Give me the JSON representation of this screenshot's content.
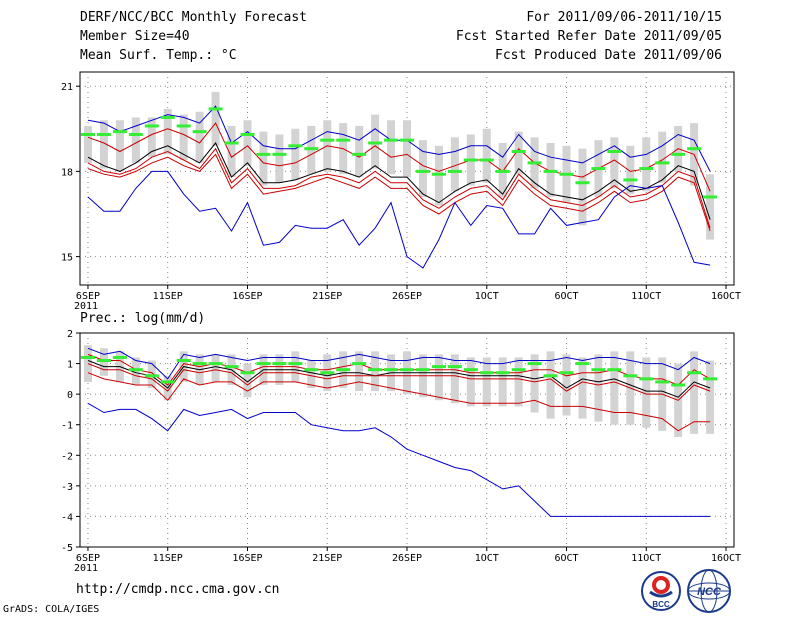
{
  "header": {
    "title": "DERF/NCC/BCC Monthly Forecast",
    "member_size": "Member Size=40",
    "variable": "Mean Surf. Temp.: °C",
    "period": "For 2011/09/06-2011/10/15",
    "started": "Fcst Started Refer Date 2011/09/05",
    "produced": "Fcst Produced Date 2011/09/06"
  },
  "footer": {
    "url": "http://cmdp.ncc.cma.gov.cn",
    "credit": "GrADS: COLA/IGES",
    "logo_bcc_text": "BCC",
    "logo_ncc_text": "NCC"
  },
  "colors": {
    "envelope": "#0000cc",
    "inner_band": "#cc0000",
    "mean": "#000000",
    "box": "#d3d3d3",
    "median": "#33ee33",
    "grid": "#888888"
  },
  "chart_data": [
    {
      "type": "line",
      "title": "Mean Surf. Temp.: °C",
      "ylim": [
        14,
        21.5
      ],
      "yticks": [
        15,
        18,
        21
      ],
      "x": [
        6,
        7,
        8,
        9,
        10,
        11,
        12,
        13,
        14,
        15,
        16,
        17,
        18,
        19,
        20,
        21,
        22,
        23,
        24,
        25,
        26,
        27,
        28,
        29,
        30,
        31,
        32,
        33,
        34,
        35,
        36,
        37,
        38,
        39,
        40,
        41,
        42,
        43,
        44,
        45
      ],
      "xticks": [
        {
          "day": 6,
          "label": "6SEP",
          "sub": "2011"
        },
        {
          "day": 11,
          "label": "11SEP"
        },
        {
          "day": 16,
          "label": "16SEP"
        },
        {
          "day": 21,
          "label": "21SEP"
        },
        {
          "day": 26,
          "label": "26SEP"
        },
        {
          "day": 31,
          "label": "1OCT"
        },
        {
          "day": 36,
          "label": "6OCT"
        },
        {
          "day": 41,
          "label": "11OCT"
        },
        {
          "day": 46,
          "label": "16OCT"
        }
      ],
      "series": [
        {
          "name": "max",
          "values": [
            19.8,
            19.7,
            19.4,
            19.6,
            19.8,
            20.0,
            19.9,
            19.7,
            20.3,
            19.0,
            19.4,
            18.9,
            18.8,
            18.8,
            19.1,
            19.4,
            19.3,
            19.1,
            19.5,
            19.1,
            19.1,
            18.7,
            18.6,
            18.7,
            18.9,
            18.9,
            18.5,
            19.3,
            18.7,
            18.5,
            18.4,
            18.3,
            18.6,
            18.9,
            18.5,
            18.6,
            18.9,
            19.3,
            19.1,
            18.0
          ]
        },
        {
          "name": "p90",
          "values": [
            19.2,
            19.0,
            18.7,
            19.0,
            19.3,
            19.5,
            19.3,
            19.0,
            19.7,
            18.5,
            18.9,
            18.3,
            18.2,
            18.3,
            18.6,
            18.9,
            18.8,
            18.5,
            18.9,
            18.5,
            18.6,
            18.2,
            18.0,
            18.2,
            18.4,
            18.4,
            18.0,
            18.8,
            18.3,
            18.0,
            17.9,
            17.8,
            18.1,
            18.4,
            18.0,
            18.1,
            18.4,
            18.8,
            18.6,
            17.3
          ]
        },
        {
          "name": "mean",
          "values": [
            18.5,
            18.2,
            18.0,
            18.3,
            18.7,
            18.9,
            18.6,
            18.3,
            19.0,
            17.8,
            18.3,
            17.6,
            17.6,
            17.7,
            17.9,
            18.1,
            18.0,
            17.8,
            18.2,
            17.8,
            17.8,
            17.2,
            16.9,
            17.3,
            17.6,
            17.7,
            17.2,
            18.1,
            17.6,
            17.2,
            17.1,
            17.0,
            17.3,
            17.7,
            17.3,
            17.4,
            17.7,
            18.2,
            18.0,
            16.3
          ]
        },
        {
          "name": "p10",
          "values": [
            18.3,
            18.0,
            17.9,
            18.1,
            18.5,
            18.7,
            18.4,
            18.1,
            18.8,
            17.6,
            18.1,
            17.4,
            17.4,
            17.5,
            17.8,
            17.9,
            17.8,
            17.6,
            18.0,
            17.6,
            17.6,
            17.0,
            16.7,
            17.1,
            17.4,
            17.5,
            17.0,
            17.9,
            17.4,
            17.0,
            16.9,
            16.8,
            17.1,
            17.5,
            17.1,
            17.2,
            17.5,
            18.0,
            17.8,
            16.0
          ]
        },
        {
          "name": "p10_lower",
          "values": [
            18.1,
            17.9,
            17.8,
            18.0,
            18.3,
            18.5,
            18.2,
            18.0,
            18.6,
            17.4,
            17.9,
            17.2,
            17.3,
            17.4,
            17.6,
            17.8,
            17.6,
            17.4,
            17.8,
            17.4,
            17.4,
            16.8,
            16.5,
            16.9,
            17.2,
            17.3,
            16.8,
            17.7,
            17.2,
            16.8,
            16.7,
            16.6,
            16.9,
            17.3,
            16.9,
            17.0,
            17.3,
            17.8,
            17.6,
            15.9
          ]
        },
        {
          "name": "min",
          "values": [
            17.1,
            16.6,
            16.6,
            17.4,
            18.0,
            18.0,
            17.2,
            16.6,
            16.7,
            15.9,
            16.9,
            15.4,
            15.5,
            16.1,
            16.0,
            16.0,
            16.3,
            15.4,
            16.0,
            16.9,
            15.0,
            14.6,
            15.6,
            16.9,
            16.1,
            16.8,
            16.7,
            15.8,
            15.8,
            16.7,
            16.1,
            16.2,
            16.3,
            17.1,
            17.5,
            17.4,
            17.5,
            16.2,
            14.8,
            14.7
          ]
        }
      ],
      "boxes": {
        "top": [
          19.6,
          19.8,
          19.8,
          19.9,
          19.9,
          20.2,
          20.0,
          20.1,
          20.8,
          19.6,
          19.8,
          19.4,
          19.3,
          19.5,
          19.6,
          19.8,
          19.7,
          19.6,
          20.0,
          19.8,
          19.8,
          19.1,
          18.9,
          19.2,
          19.3,
          19.5,
          19.0,
          19.4,
          19.2,
          19.0,
          18.9,
          18.8,
          19.1,
          19.2,
          18.9,
          19.2,
          19.4,
          19.6,
          19.7,
          17.9
        ],
        "bottom": [
          18.3,
          18.1,
          18.0,
          18.3,
          18.5,
          18.6,
          18.4,
          18.3,
          18.9,
          17.8,
          18.2,
          17.5,
          17.6,
          17.7,
          17.9,
          18.0,
          17.9,
          17.8,
          18.1,
          17.9,
          17.8,
          17.1,
          16.8,
          17.3,
          17.5,
          17.6,
          17.1,
          17.9,
          17.4,
          17.1,
          16.9,
          16.1,
          17.1,
          17.4,
          17.2,
          17.3,
          17.6,
          18.0,
          17.5,
          15.6
        ]
      },
      "medians": [
        19.3,
        19.3,
        19.4,
        19.3,
        19.6,
        19.9,
        19.6,
        19.4,
        20.2,
        19.0,
        19.3,
        18.6,
        18.6,
        18.9,
        18.8,
        19.1,
        19.1,
        18.6,
        19.0,
        19.1,
        19.1,
        18.0,
        17.9,
        18.0,
        18.4,
        18.4,
        18.0,
        18.7,
        18.3,
        18.0,
        17.9,
        17.6,
        18.1,
        18.7,
        17.7,
        18.1,
        18.3,
        18.6,
        18.8,
        17.1
      ]
    },
    {
      "type": "line",
      "title": "Prec.: log(mm/d)",
      "ylim": [
        -5,
        2
      ],
      "yticks": [
        -5,
        -4,
        -3,
        -2,
        -1,
        0,
        1,
        2
      ],
      "x": [
        6,
        7,
        8,
        9,
        10,
        11,
        12,
        13,
        14,
        15,
        16,
        17,
        18,
        19,
        20,
        21,
        22,
        23,
        24,
        25,
        26,
        27,
        28,
        29,
        30,
        31,
        32,
        33,
        34,
        35,
        36,
        37,
        38,
        39,
        40,
        41,
        42,
        43,
        44,
        45
      ],
      "xticks": [
        {
          "day": 6,
          "label": "6SEP",
          "sub": "2011"
        },
        {
          "day": 11,
          "label": "11SEP"
        },
        {
          "day": 16,
          "label": "16SEP"
        },
        {
          "day": 21,
          "label": "21SEP"
        },
        {
          "day": 26,
          "label": "26SEP"
        },
        {
          "day": 31,
          "label": "1OCT"
        },
        {
          "day": 36,
          "label": "6OCT"
        },
        {
          "day": 41,
          "label": "11OCT"
        },
        {
          "day": 46,
          "label": "16OCT"
        }
      ],
      "series": [
        {
          "name": "max",
          "values": [
            1.5,
            1.3,
            1.4,
            1.1,
            1.0,
            0.5,
            1.3,
            1.2,
            1.3,
            1.2,
            1.1,
            1.2,
            1.2,
            1.2,
            1.1,
            1.1,
            1.2,
            1.3,
            1.2,
            1.1,
            1.1,
            1.2,
            1.2,
            1.1,
            1.1,
            1.0,
            1.0,
            1.1,
            1.1,
            1.1,
            1.2,
            1.1,
            1.2,
            1.2,
            1.1,
            1.0,
            1.0,
            0.8,
            1.2,
            1.0
          ]
        },
        {
          "name": "p90",
          "values": [
            1.3,
            1.1,
            1.1,
            0.8,
            0.7,
            0.3,
            1.0,
            0.9,
            1.0,
            0.9,
            0.7,
            0.9,
            0.9,
            0.9,
            0.8,
            0.8,
            0.9,
            1.0,
            0.8,
            0.8,
            0.8,
            0.8,
            0.8,
            0.8,
            0.7,
            0.7,
            0.7,
            0.7,
            0.8,
            0.8,
            0.6,
            0.7,
            0.7,
            0.8,
            0.6,
            0.5,
            0.5,
            0.3,
            0.8,
            0.5
          ]
        },
        {
          "name": "mean",
          "values": [
            1.1,
            0.9,
            0.9,
            0.7,
            0.6,
            0.2,
            0.9,
            0.8,
            0.9,
            0.8,
            0.4,
            0.8,
            0.8,
            0.8,
            0.7,
            0.6,
            0.7,
            0.7,
            0.6,
            0.7,
            0.7,
            0.7,
            0.7,
            0.7,
            0.6,
            0.6,
            0.6,
            0.6,
            0.5,
            0.6,
            0.2,
            0.5,
            0.4,
            0.5,
            0.3,
            0.1,
            0.1,
            -0.1,
            0.4,
            0.2
          ]
        },
        {
          "name": "p10",
          "values": [
            1.0,
            0.8,
            0.8,
            0.6,
            0.5,
            0.1,
            0.8,
            0.7,
            0.8,
            0.7,
            0.3,
            0.7,
            0.7,
            0.7,
            0.6,
            0.5,
            0.6,
            0.6,
            0.6,
            0.6,
            0.6,
            0.6,
            0.6,
            0.6,
            0.5,
            0.5,
            0.5,
            0.5,
            0.4,
            0.5,
            0.1,
            0.4,
            0.3,
            0.4,
            0.2,
            0.0,
            0.0,
            -0.2,
            0.3,
            0.1
          ]
        },
        {
          "name": "p10_lower",
          "values": [
            0.7,
            0.5,
            0.4,
            0.3,
            0.3,
            -0.2,
            0.5,
            0.3,
            0.4,
            0.4,
            0.1,
            0.4,
            0.4,
            0.4,
            0.3,
            0.2,
            0.3,
            0.4,
            0.3,
            0.2,
            0.1,
            0.0,
            -0.1,
            -0.2,
            -0.3,
            -0.3,
            -0.3,
            -0.3,
            -0.2,
            -0.4,
            -0.4,
            -0.4,
            -0.5,
            -0.6,
            -0.6,
            -0.7,
            -0.8,
            -1.2,
            -0.9,
            -0.9
          ]
        },
        {
          "name": "min",
          "values": [
            -0.3,
            -0.6,
            -0.5,
            -0.5,
            -0.8,
            -1.2,
            -0.5,
            -0.7,
            -0.6,
            -0.5,
            -0.8,
            -0.6,
            -0.6,
            -0.6,
            -1.0,
            -1.1,
            -1.2,
            -1.2,
            -1.1,
            -1.4,
            -1.8,
            -2.0,
            -2.2,
            -2.4,
            -2.5,
            -2.8,
            -3.1,
            -3.0,
            -3.5,
            -4.0,
            -4.0,
            -4.0,
            -4.0,
            -4.0,
            -4.0,
            -4.0,
            -4.0,
            -4.0,
            -4.0,
            -4.0
          ]
        }
      ],
      "boxes": {
        "top": [
          1.6,
          1.5,
          1.4,
          1.2,
          1.1,
          0.6,
          1.4,
          1.3,
          1.3,
          1.3,
          1.0,
          1.3,
          1.3,
          1.4,
          1.1,
          1.3,
          1.4,
          1.4,
          1.4,
          1.3,
          1.4,
          1.3,
          1.3,
          1.3,
          1.2,
          1.2,
          1.2,
          1.2,
          1.3,
          1.4,
          1.3,
          1.2,
          1.3,
          1.4,
          1.4,
          1.2,
          1.2,
          1.0,
          1.4,
          1.1
        ],
        "bottom": [
          0.4,
          0.6,
          0.4,
          0.3,
          0.2,
          -0.2,
          0.4,
          0.3,
          0.4,
          0.3,
          -0.1,
          0.3,
          0.3,
          0.4,
          0.2,
          0.1,
          0.2,
          0.1,
          0.1,
          0.1,
          0.0,
          -0.1,
          -0.2,
          -0.3,
          -0.4,
          -0.4,
          -0.4,
          -0.4,
          -0.6,
          -0.8,
          -0.7,
          -0.8,
          -0.9,
          -1.0,
          -1.0,
          -1.1,
          -1.2,
          -1.4,
          -1.3,
          -1.3
        ]
      },
      "medians": [
        1.2,
        1.1,
        1.2,
        0.8,
        0.6,
        0.4,
        1.1,
        1.0,
        1.0,
        0.9,
        0.7,
        1.0,
        1.0,
        1.0,
        0.8,
        0.7,
        0.8,
        1.0,
        0.8,
        0.8,
        0.8,
        0.8,
        0.9,
        0.9,
        0.8,
        0.7,
        0.7,
        0.8,
        1.0,
        0.6,
        0.7,
        1.0,
        0.8,
        0.8,
        0.6,
        0.5,
        0.4,
        0.3,
        0.7,
        0.5
      ]
    }
  ]
}
